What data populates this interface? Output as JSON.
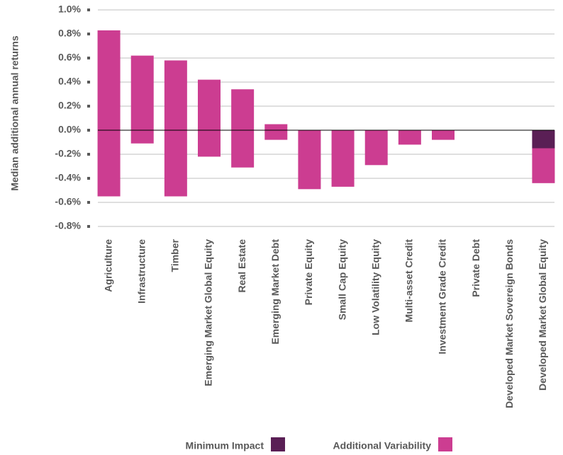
{
  "chart_data": {
    "type": "floating_bar",
    "y_label": "Median additional annual returns",
    "categories": [
      "Agriculture",
      "Infrastructure",
      "Timber",
      "Emerging Market Global Equity",
      "Real Estate",
      "Emerging Market Debt",
      "Private Equity",
      "Small Cap Equity",
      "Low Volatility Equity",
      "Multi-asset Credit",
      "Investment Grade Credit",
      "Private Debt",
      "Developed Market Sovereign Bonds",
      "Developed Market Global Equity"
    ],
    "series": [
      {
        "name": "Minimum Impact",
        "color": "#5a1f55",
        "low": [
          null,
          null,
          null,
          null,
          null,
          null,
          null,
          null,
          null,
          null,
          null,
          null,
          null,
          -0.15
        ],
        "high": [
          null,
          null,
          null,
          null,
          null,
          null,
          null,
          null,
          null,
          null,
          null,
          null,
          null,
          0
        ]
      },
      {
        "name": "Additional Variability",
        "color": "#cc3d91",
        "low": [
          -0.55,
          -0.11,
          -0.55,
          -0.22,
          -0.31,
          -0.08,
          -0.49,
          -0.47,
          -0.29,
          -0.12,
          -0.08,
          null,
          null,
          -0.44
        ],
        "high": [
          0.83,
          0.62,
          0.58,
          0.42,
          0.34,
          0.05,
          0,
          0,
          0,
          0,
          0,
          null,
          null,
          -0.15
        ]
      }
    ],
    "ylim": [
      -0.8,
      1.0
    ],
    "yticks": [
      {
        "value": -0.8,
        "label": "-0.8%"
      },
      {
        "value": -0.6,
        "label": "-0.6%"
      },
      {
        "value": -0.4,
        "label": "-0.4%"
      },
      {
        "value": -0.2,
        "label": "-0.2%"
      },
      {
        "value": 0,
        "label": "0.0%"
      },
      {
        "value": 0.2,
        "label": "0.2%"
      },
      {
        "value": 0.4,
        "label": "0.4%"
      },
      {
        "value": 0.6,
        "label": "0.6%"
      },
      {
        "value": 0.8,
        "label": "0.8%"
      },
      {
        "value": 1.0,
        "label": "1.0%"
      }
    ],
    "grid": true,
    "legend": "bottom"
  }
}
